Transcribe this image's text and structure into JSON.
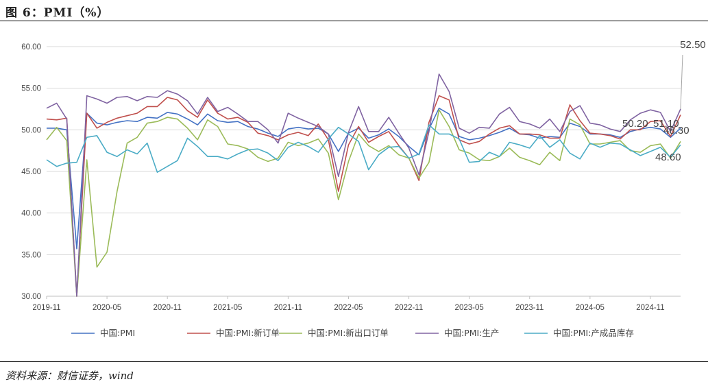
{
  "figure": {
    "title": "图 6：PMI（%）",
    "source": "资料来源：财信证券，wind"
  },
  "chart_data": {
    "type": "line",
    "xlabel": "",
    "ylabel": "",
    "ylim": [
      30,
      60
    ],
    "yticks": [
      "60.00",
      "55.00",
      "50.00",
      "45.00",
      "40.00",
      "35.00",
      "30.00"
    ],
    "xtick_labels": [
      "2019-11",
      "2020-05",
      "2020-11",
      "2021-05",
      "2021-11",
      "2022-05",
      "2022-11",
      "2023-05",
      "2023-11",
      "2024-05",
      "2024-11"
    ],
    "x_start": "2019-11",
    "grid": "horizontal",
    "legend_position": "bottom",
    "colors": [
      "#4472C4",
      "#C0504D",
      "#9BBB59",
      "#8064A2",
      "#4BACC6"
    ],
    "series": [
      {
        "name": "中国:PMI",
        "values": [
          50.2,
          50.2,
          50.0,
          35.7,
          52.0,
          50.8,
          50.6,
          50.9,
          51.1,
          51.0,
          51.5,
          51.4,
          52.1,
          51.9,
          51.3,
          50.6,
          51.9,
          51.1,
          50.9,
          51.0,
          50.4,
          50.1,
          49.6,
          49.2,
          50.1,
          50.3,
          50.1,
          50.2,
          49.5,
          47.4,
          49.6,
          50.2,
          49.0,
          49.4,
          50.1,
          49.2,
          48.0,
          47.0,
          50.1,
          52.6,
          51.9,
          49.2,
          48.8,
          49.0,
          49.3,
          49.7,
          50.2,
          49.5,
          49.4,
          49.0,
          49.2,
          49.1,
          50.8,
          50.4,
          49.5,
          49.5,
          49.4,
          49.1,
          49.8,
          50.1,
          50.3,
          50.1,
          49.1,
          50.2
        ]
      },
      {
        "name": "中国:PMI:新订单",
        "values": [
          51.3,
          51.2,
          51.4,
          29.3,
          52.0,
          50.2,
          50.9,
          51.4,
          51.7,
          52.0,
          52.8,
          52.8,
          53.9,
          53.6,
          52.3,
          51.5,
          53.6,
          52.0,
          51.3,
          51.5,
          50.9,
          49.6,
          49.3,
          48.8,
          49.4,
          49.7,
          49.3,
          50.7,
          48.8,
          42.6,
          48.2,
          50.4,
          48.5,
          49.2,
          49.8,
          48.1,
          46.6,
          43.9,
          50.9,
          54.1,
          53.6,
          48.8,
          48.3,
          48.6,
          49.5,
          50.2,
          50.5,
          49.5,
          49.5,
          49.4,
          49.0,
          49.0,
          53.0,
          51.1,
          49.6,
          49.5,
          49.3,
          48.9,
          50.0,
          50.0,
          51.0,
          51.1,
          49.2,
          51.8
        ]
      },
      {
        "name": "中国:PMI:新出口订单",
        "values": [
          48.8,
          50.3,
          48.7,
          28.7,
          46.4,
          33.5,
          35.3,
          42.6,
          48.4,
          49.1,
          50.8,
          51.0,
          51.5,
          51.3,
          50.2,
          48.8,
          51.2,
          50.4,
          48.3,
          48.1,
          47.7,
          46.7,
          46.2,
          46.6,
          48.5,
          48.1,
          48.4,
          48.9,
          47.2,
          41.6,
          46.2,
          49.5,
          48.1,
          47.4,
          48.1,
          47.0,
          46.6,
          44.2,
          46.1,
          52.4,
          50.4,
          47.6,
          47.2,
          46.4,
          46.3,
          46.8,
          47.8,
          46.7,
          46.3,
          45.8,
          47.3,
          46.3,
          51.3,
          50.6,
          48.3,
          48.3,
          48.5,
          48.7,
          47.5,
          47.3,
          48.1,
          48.3,
          46.6,
          48.6
        ]
      },
      {
        "name": "中国:PMI:生产",
        "values": [
          52.6,
          53.2,
          51.3,
          27.8,
          54.1,
          53.7,
          53.2,
          53.9,
          54.0,
          53.5,
          54.0,
          53.9,
          54.7,
          54.3,
          53.5,
          51.9,
          53.9,
          52.2,
          52.7,
          51.9,
          51.0,
          51.0,
          50.0,
          48.4,
          52.0,
          51.4,
          50.9,
          50.4,
          49.5,
          44.4,
          49.7,
          52.8,
          49.8,
          49.8,
          51.5,
          49.6,
          47.8,
          44.6,
          49.8,
          56.7,
          54.6,
          50.2,
          49.6,
          50.3,
          50.2,
          51.9,
          52.7,
          51.0,
          50.7,
          50.2,
          51.3,
          49.8,
          52.2,
          52.9,
          50.8,
          50.6,
          50.1,
          49.8,
          51.2,
          52.0,
          52.4,
          52.1,
          49.8,
          52.5
        ]
      },
      {
        "name": "中国:PMI:产成品库存",
        "values": [
          46.4,
          45.6,
          46.0,
          46.1,
          49.1,
          49.3,
          47.3,
          46.8,
          47.6,
          47.1,
          48.4,
          44.9,
          45.6,
          46.3,
          49.0,
          48.0,
          46.8,
          46.8,
          46.5,
          47.1,
          47.6,
          47.7,
          47.2,
          46.3,
          47.9,
          48.5,
          48.0,
          47.3,
          48.9,
          50.3,
          49.5,
          48.6,
          45.2,
          47.0,
          47.9,
          48.0,
          46.6,
          47.1,
          50.6,
          49.5,
          49.5,
          48.9,
          46.1,
          46.2,
          47.3,
          46.8,
          48.5,
          48.2,
          47.8,
          49.3,
          47.9,
          48.8,
          47.2,
          46.5,
          48.4,
          47.9,
          48.4,
          48.3,
          47.6,
          46.9,
          47.4,
          47.9,
          46.7,
          48.2
        ]
      }
    ],
    "annotations": [
      {
        "text": "52.50"
      },
      {
        "text": "50.20"
      },
      {
        "text": "51.10"
      },
      {
        "text": "48.30"
      },
      {
        "text": "48.60"
      }
    ]
  }
}
